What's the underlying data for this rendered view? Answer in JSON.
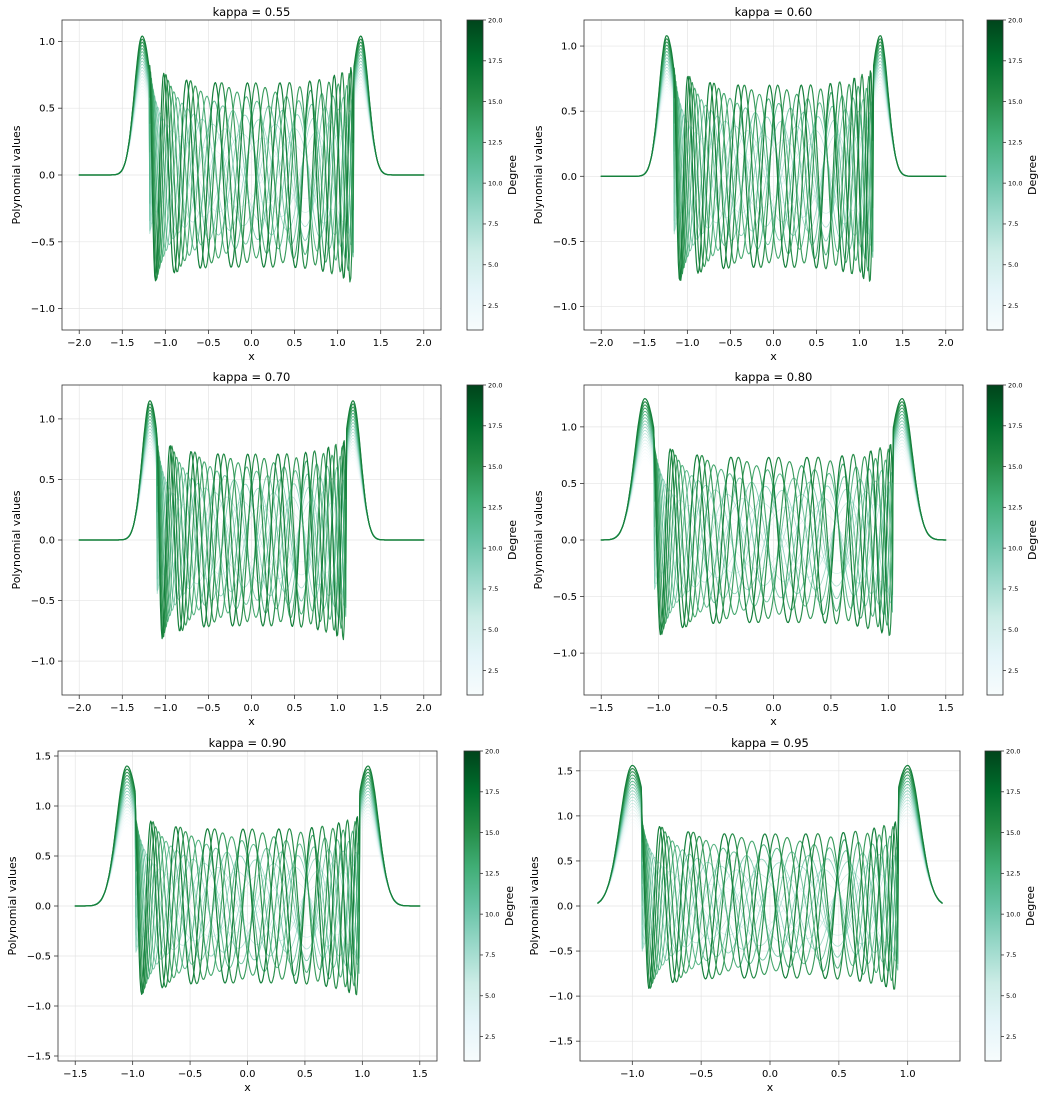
{
  "figure": {
    "colorbar_label": "Degree",
    "colorbar_ticks": [
      "2.5",
      "5.0",
      "7.5",
      "10.0",
      "12.5",
      "15.0",
      "17.5",
      "20.0"
    ],
    "colorbar_range": [
      1,
      20
    ],
    "colormap": [
      "#f7fcfd",
      "#e5f5f9",
      "#ccece6",
      "#99d8c9",
      "#66c2a4",
      "#41ae76",
      "#238b45",
      "#006d2c",
      "#00441b"
    ],
    "x_label": "x",
    "y_label": "Polynomial values"
  },
  "chart_data": [
    {
      "type": "line",
      "title": "kappa = 0.55",
      "kappa": 0.55,
      "xlabel": "x",
      "ylabel": "Polynomial values",
      "xlim": [
        -2.2,
        2.2
      ],
      "ylim": [
        -1.16,
        1.16
      ],
      "x_ticks": [
        "−2.0",
        "−1.5",
        "−1.0",
        "−0.5",
        "0.0",
        "0.5",
        "1.0",
        "1.5",
        "2.0"
      ],
      "y_ticks": [
        "−1.0",
        "−0.5",
        "0.0",
        "0.5",
        "1.0"
      ],
      "x_range": [
        -2.0,
        2.0
      ],
      "edge_x": 1.27,
      "edge_peak": 1.04,
      "bulk_amplitude": 0.69,
      "degrees": [
        1,
        20
      ],
      "series_count": 20
    },
    {
      "type": "line",
      "title": "kappa = 0.60",
      "kappa": 0.6,
      "xlabel": "x",
      "ylabel": "Polynomial values",
      "xlim": [
        -2.2,
        2.2
      ],
      "ylim": [
        -1.18,
        1.2
      ],
      "x_ticks": [
        "−2.0",
        "−1.5",
        "−1.0",
        "−0.5",
        "0.0",
        "0.5",
        "1.0",
        "1.5",
        "2.0"
      ],
      "y_ticks": [
        "−1.0",
        "−0.5",
        "0.0",
        "0.5",
        "1.0"
      ],
      "x_range": [
        -2.0,
        2.0
      ],
      "edge_x": 1.24,
      "edge_peak": 1.08,
      "bulk_amplitude": 0.7,
      "degrees": [
        1,
        20
      ],
      "series_count": 20
    },
    {
      "type": "line",
      "title": "kappa = 0.70",
      "kappa": 0.7,
      "xlabel": "x",
      "ylabel": "Polynomial values",
      "xlim": [
        -2.2,
        2.2
      ],
      "ylim": [
        -1.28,
        1.28
      ],
      "x_ticks": [
        "−2.0",
        "−1.5",
        "−1.0",
        "−0.5",
        "0.0",
        "0.5",
        "1.0",
        "1.5",
        "2.0"
      ],
      "y_ticks": [
        "−1.0",
        "−0.5",
        "0.0",
        "0.5",
        "1.0"
      ],
      "x_range": [
        -2.0,
        2.0
      ],
      "edge_x": 1.18,
      "edge_peak": 1.15,
      "bulk_amplitude": 0.71,
      "degrees": [
        1,
        20
      ],
      "series_count": 20
    },
    {
      "type": "line",
      "title": "kappa = 0.80",
      "kappa": 0.8,
      "xlabel": "x",
      "ylabel": "Polynomial values",
      "xlim": [
        -1.65,
        1.65
      ],
      "ylim": [
        -1.37,
        1.37
      ],
      "x_ticks": [
        "−1.5",
        "−1.0",
        "−0.5",
        "0.0",
        "0.5",
        "1.0",
        "1.5"
      ],
      "y_ticks": [
        "−1.0",
        "−0.5",
        "0.0",
        "0.5",
        "1.0"
      ],
      "x_range": [
        -1.5,
        1.5
      ],
      "edge_x": 1.12,
      "edge_peak": 1.25,
      "bulk_amplitude": 0.73,
      "degrees": [
        1,
        20
      ],
      "series_count": 20
    },
    {
      "type": "line",
      "title": "kappa = 0.90",
      "kappa": 0.9,
      "xlabel": "x",
      "ylabel": "Polynomial values",
      "xlim": [
        -1.65,
        1.65
      ],
      "ylim": [
        -1.55,
        1.55
      ],
      "x_ticks": [
        "−1.5",
        "−1.0",
        "−0.5",
        "0.0",
        "0.5",
        "1.0",
        "1.5"
      ],
      "y_ticks": [
        "−1.5",
        "−1.0",
        "−0.5",
        "0.0",
        "0.5",
        "1.0",
        "1.5"
      ],
      "x_range": [
        -1.5,
        1.5
      ],
      "edge_x": 1.05,
      "edge_peak": 1.4,
      "bulk_amplitude": 0.77,
      "degrees": [
        1,
        20
      ],
      "series_count": 20
    },
    {
      "type": "line",
      "title": "kappa = 0.95",
      "kappa": 0.95,
      "xlabel": "x",
      "ylabel": "Polynomial values",
      "xlim": [
        -1.38,
        1.38
      ],
      "ylim": [
        -1.72,
        1.72
      ],
      "x_ticks": [
        "−1.0",
        "−0.5",
        "0.0",
        "0.5",
        "1.0"
      ],
      "y_ticks": [
        "−1.5",
        "−1.0",
        "−0.5",
        "0.0",
        "0.5",
        "1.0",
        "1.5"
      ],
      "x_range": [
        -1.25,
        1.25
      ],
      "edge_x": 1.0,
      "edge_peak": 1.56,
      "bulk_amplitude": 0.8,
      "degrees": [
        1,
        20
      ],
      "series_count": 20
    }
  ]
}
